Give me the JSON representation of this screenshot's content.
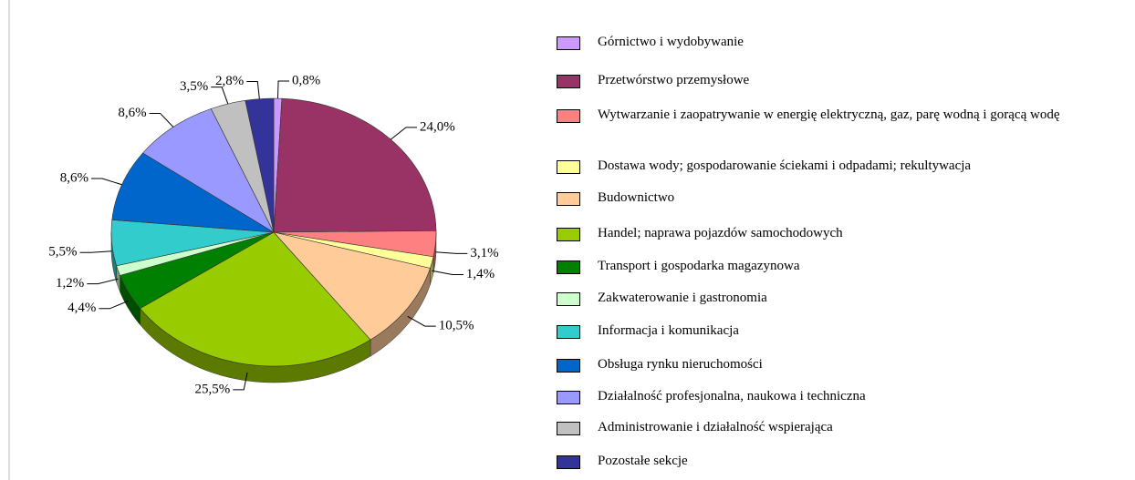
{
  "chart_data": {
    "type": "pie",
    "categories": [
      "Górnictwo i wydobywanie",
      "Przetwórstwo przemysłowe",
      "Wytwarzanie i zaopatrywanie w energię elektryczną, gaz, parę wodną i gorącą wodę",
      "Dostawa wody; gospodarowanie ściekami i odpadami; rekultywacja",
      "Budownictwo",
      "Handel; naprawa pojazdów samochodowych",
      "Transport i gospodarka magazynowa",
      "Zakwaterowanie i gastronomia",
      "Informacja i komunikacja",
      "Obsługa rynku nieruchomości",
      "Działalność profesjonalna, naukowa i techniczna",
      "Administrowanie i działalność wspierająca",
      "Pozostałe sekcje"
    ],
    "values": [
      0.8,
      24.0,
      3.1,
      1.4,
      10.5,
      25.5,
      4.4,
      1.2,
      5.5,
      8.6,
      8.6,
      3.5,
      2.8
    ],
    "value_labels": [
      "0,8%",
      "24,0%",
      "3,1%",
      "1,4%",
      "10,5%",
      "25,5%",
      "4,4%",
      "1,2%",
      "5,5%",
      "8,6%",
      "8,6%",
      "3,5%",
      "2,8%"
    ],
    "colors": [
      "#cc99ff",
      "#993366",
      "#ff8080",
      "#ffff99",
      "#ffcc99",
      "#99cc00",
      "#008000",
      "#ccffcc",
      "#33cccc",
      "#0066cc",
      "#9999ff",
      "#c0c0c0",
      "#333399"
    ]
  }
}
